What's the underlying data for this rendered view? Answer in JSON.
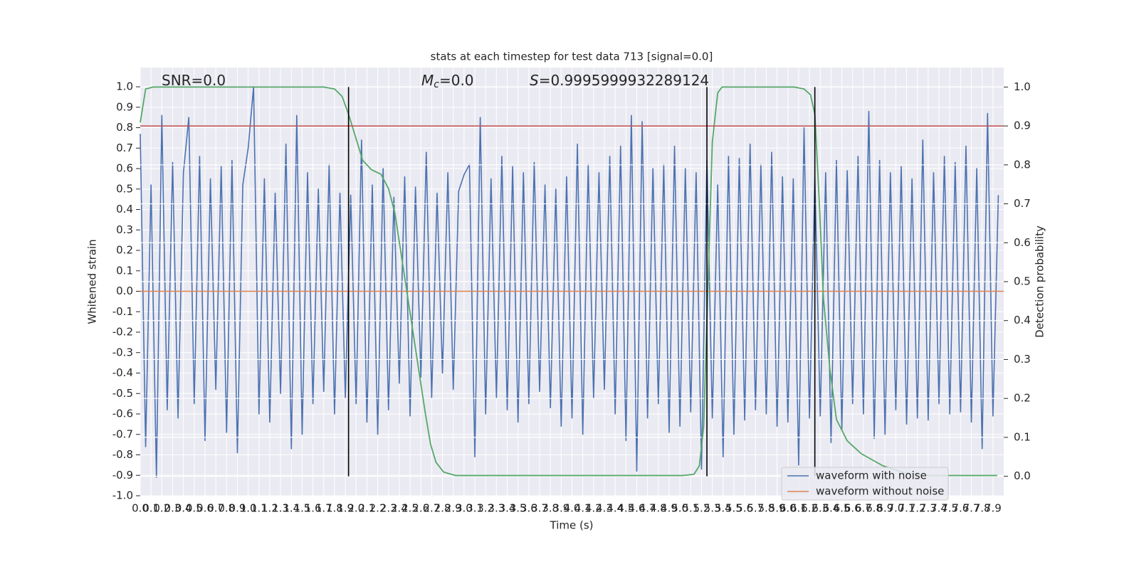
{
  "chart_data": {
    "type": "line",
    "title": "stats at each timestep for test data 713 [signal=0.0]",
    "xlabel": "Time (s)",
    "ylabel": "Whitened strain",
    "y2label": "Detection probability",
    "annotations": [
      [
        "SNR=0.0"
      ],
      [
        "M",
        "c",
        "=0.0"
      ],
      [
        "S",
        "=0.9995999932289124"
      ]
    ],
    "grid": true,
    "legend": "lower right",
    "xlim": [
      0,
      8
    ],
    "ylim": [
      -1.0,
      1.094
    ],
    "y2lim": [
      -0.05,
      1.05
    ],
    "xticks": [
      {
        "value": 0,
        "label": "0.0"
      },
      0.1,
      0.2,
      0.3,
      0.4,
      0.5,
      0.6,
      0.7,
      0.8,
      0.9,
      {
        "value": 1,
        "label": "1.0"
      },
      1.1,
      1.2,
      1.3,
      1.4,
      1.5,
      1.6,
      1.7,
      1.8,
      1.9,
      {
        "value": 2,
        "label": "2.0"
      },
      2.1,
      2.2,
      2.3,
      2.4,
      2.5,
      2.6,
      2.7,
      2.8,
      2.9,
      {
        "value": 3,
        "label": "3.0"
      },
      3.1,
      3.2,
      3.3,
      3.4,
      3.5,
      3.6,
      3.7,
      3.8,
      3.9,
      {
        "value": 4,
        "label": "4.0"
      },
      4.1,
      4.2,
      4.3,
      4.4,
      4.5,
      4.6,
      4.7,
      4.8,
      4.9,
      {
        "value": 5,
        "label": "5.0"
      },
      5.1,
      5.2,
      5.3,
      5.4,
      5.5,
      5.6,
      5.7,
      5.8,
      5.9,
      {
        "value": 6,
        "label": "6.0"
      },
      6.1,
      6.2,
      6.3,
      6.4,
      6.5,
      6.6,
      6.7,
      6.8,
      6.9,
      {
        "value": 7,
        "label": "7.0"
      },
      7.1,
      7.2,
      7.3,
      7.4,
      7.5,
      7.6,
      7.7,
      7.8,
      7.9
    ],
    "yticks": [
      {
        "value": -1,
        "label": "-1.0"
      },
      -0.9,
      -0.8,
      -0.7,
      -0.6,
      -0.5,
      -0.4,
      -0.3,
      -0.2,
      -0.1,
      {
        "value": 0,
        "label": "0.0"
      },
      0.1,
      0.2,
      0.3,
      0.4,
      0.5,
      0.6,
      0.7,
      0.8,
      0.9,
      {
        "value": 1,
        "label": "1.0"
      }
    ],
    "y2ticks": [
      {
        "value": 0,
        "label": "0.0"
      },
      0.1,
      0.2,
      0.3,
      0.4,
      0.5,
      0.6,
      0.7,
      0.8,
      0.9,
      {
        "value": 1,
        "label": "1.0"
      }
    ],
    "series": [
      {
        "name": "waveform with noise",
        "color": "#4c72b0",
        "x": [
          0,
          0.05,
          0.1,
          0.15,
          0.2,
          0.25,
          0.3,
          0.35,
          0.4,
          0.45,
          0.5,
          0.55,
          0.6,
          0.65,
          0.7,
          0.75,
          0.8,
          0.85,
          0.9,
          0.95,
          1,
          1.05,
          1.1,
          1.15,
          1.2,
          1.25,
          1.3,
          1.35,
          1.4,
          1.45,
          1.5,
          1.55,
          1.6,
          1.65,
          1.7,
          1.75,
          1.8,
          1.85,
          1.9,
          1.95,
          2,
          2.05,
          2.1,
          2.15,
          2.2,
          2.25,
          2.3,
          2.35,
          2.4,
          2.45,
          2.5,
          2.55,
          2.6,
          2.65,
          2.7,
          2.75,
          2.8,
          2.85,
          2.9,
          2.95,
          3,
          3.05,
          3.1,
          3.15,
          3.2,
          3.25,
          3.3,
          3.35,
          3.4,
          3.45,
          3.5,
          3.55,
          3.6,
          3.65,
          3.7,
          3.75,
          3.8,
          3.85,
          3.9,
          3.95,
          4,
          4.05,
          4.1,
          4.15,
          4.2,
          4.25,
          4.3,
          4.35,
          4.4,
          4.45,
          4.5,
          4.55,
          4.6,
          4.65,
          4.7,
          4.75,
          4.8,
          4.85,
          4.9,
          4.95,
          5,
          5.05,
          5.1,
          5.15,
          5.2,
          5.25,
          5.3,
          5.35,
          5.4,
          5.45,
          5.5,
          5.55,
          5.6,
          5.65,
          5.7,
          5.75,
          5.8,
          5.85,
          5.9,
          5.95,
          6,
          6.05,
          6.1,
          6.15,
          6.2,
          6.25,
          6.3,
          6.35,
          6.4,
          6.45,
          6.5,
          6.55,
          6.6,
          6.65,
          6.7,
          6.75,
          6.8,
          6.85,
          6.9,
          6.95,
          7,
          7.05,
          7.1,
          7.15,
          7.2,
          7.25,
          7.3,
          7.35,
          7.4,
          7.45,
          7.5,
          7.55,
          7.6,
          7.65,
          7.7,
          7.75,
          7.8,
          7.85,
          7.9,
          7.95
        ],
        "values": [
          0.77,
          -0.76,
          0.52,
          -0.91,
          0.86,
          -0.58,
          0.63,
          -0.62,
          0.58,
          0.85,
          -0.55,
          0.66,
          -0.73,
          0.55,
          -0.48,
          0.61,
          -0.69,
          0.64,
          -0.79,
          0.52,
          0.7,
          1.0,
          -0.6,
          0.55,
          -0.64,
          0.48,
          -0.5,
          0.72,
          -0.77,
          0.86,
          -0.7,
          0.58,
          -0.55,
          0.5,
          -0.49,
          0.62,
          -0.6,
          0.48,
          -0.52,
          0.47,
          -0.55,
          0.74,
          -0.64,
          0.52,
          -0.7,
          0.6,
          -0.58,
          0.46,
          -0.45,
          0.56,
          -0.61,
          0.51,
          -0.42,
          0.68,
          -0.52,
          0.48,
          -0.4,
          0.58,
          -0.48,
          0.49,
          0.57,
          0.62,
          -0.81,
          0.85,
          -0.6,
          0.55,
          -0.52,
          0.66,
          -0.58,
          0.61,
          -0.64,
          0.58,
          -0.55,
          0.63,
          -0.49,
          0.52,
          -0.57,
          0.5,
          -0.66,
          0.56,
          -0.62,
          0.72,
          -0.7,
          0.62,
          -0.52,
          0.58,
          -0.48,
          0.66,
          -0.6,
          0.71,
          -0.73,
          0.86,
          -0.88,
          0.83,
          -0.62,
          0.6,
          -0.55,
          0.62,
          -0.69,
          0.71,
          -0.66,
          0.6,
          -0.59,
          0.58,
          -0.87,
          0.64,
          -0.62,
          0.52,
          -0.81,
          0.66,
          -0.7,
          0.65,
          -0.63,
          0.72,
          -0.58,
          0.62,
          -0.6,
          0.68,
          -0.66,
          0.56,
          -0.64,
          0.55,
          -0.85,
          0.8,
          -0.62,
          0.56,
          -0.61,
          0.58,
          -0.74,
          0.64,
          -0.68,
          0.59,
          -0.55,
          0.66,
          -0.6,
          0.88,
          -0.72,
          0.64,
          -0.7,
          0.58,
          -0.58,
          0.61,
          -0.65,
          0.55,
          -0.62,
          0.74,
          -0.63,
          0.58,
          -0.55,
          0.66,
          -0.6,
          0.63,
          -0.59,
          0.71,
          -0.64,
          0.6,
          -0.77,
          0.87,
          -0.61,
          0.47
        ]
      },
      {
        "name": "waveform without noise",
        "color": "#dd8452",
        "x": [
          0,
          8
        ],
        "values": [
          0,
          0
        ]
      },
      {
        "color": "#55a868",
        "axis": "y2",
        "x": [
          0,
          0.05,
          0.12,
          1.7,
          1.8,
          1.87,
          1.93,
          2.0,
          2.06,
          2.14,
          2.23,
          2.3,
          2.36,
          2.46,
          2.56,
          2.64,
          2.69,
          2.74,
          2.81,
          2.92,
          3.65,
          5.03,
          5.13,
          5.18,
          5.22,
          5.25,
          5.3,
          5.35,
          5.39,
          6.06,
          6.15,
          6.21,
          6.25,
          6.29,
          6.33,
          6.39,
          6.45,
          6.55,
          6.68,
          6.88,
          7.08,
          7.28,
          7.94
        ],
        "values": [
          0.909,
          0.995,
          1.0,
          1.0,
          0.995,
          0.976,
          0.93,
          0.867,
          0.812,
          0.788,
          0.776,
          0.739,
          0.675,
          0.493,
          0.31,
          0.164,
          0.082,
          0.036,
          0.011,
          0.002,
          0.002,
          0.002,
          0.005,
          0.027,
          0.128,
          0.401,
          0.858,
          0.985,
          1.0,
          1.0,
          0.995,
          0.98,
          0.93,
          0.712,
          0.456,
          0.274,
          0.146,
          0.091,
          0.058,
          0.027,
          0.009,
          0.002,
          0.002
        ]
      }
    ],
    "hlines": [
      {
        "value": 0.9,
        "axis": "y2",
        "color": "#c44e52"
      }
    ],
    "vlines": {
      "x": [
        1.93,
        5.25,
        6.25
      ],
      "ymin": 0,
      "ymax": 1,
      "axis": "y2",
      "color": "#000000"
    }
  }
}
